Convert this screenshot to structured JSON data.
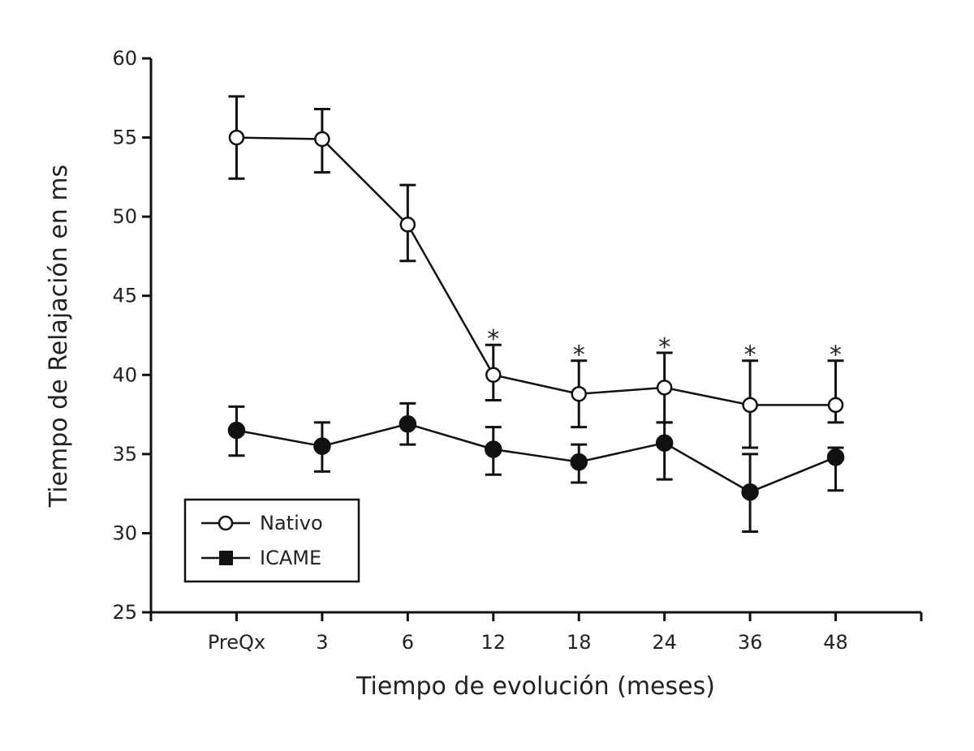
{
  "chart_data": {
    "type": "line",
    "title": "",
    "xlabel": "Tiempo de evolución (meses)",
    "ylabel": "Tiempo de Relajación en ms",
    "categories": [
      "PreQx",
      "3",
      "6",
      "12",
      "18",
      "24",
      "36",
      "48"
    ],
    "ylim": [
      25,
      60
    ],
    "yticks": [
      25,
      30,
      35,
      40,
      45,
      50,
      55,
      60
    ],
    "grid": false,
    "legend_position": "bottom-left",
    "series": [
      {
        "name": "Nativo",
        "marker": "open-circle",
        "values": [
          55.0,
          54.9,
          49.5,
          40.0,
          38.8,
          39.2,
          38.1,
          38.1
        ],
        "error_upper": [
          57.6,
          56.8,
          52.0,
          41.9,
          40.9,
          41.4,
          40.9,
          40.9
        ],
        "error_lower": [
          52.4,
          52.8,
          47.2,
          38.4,
          36.7,
          37.0,
          35.4,
          37.0
        ]
      },
      {
        "name": "ICAME",
        "marker": "filled-circle",
        "legend_marker": "filled-square",
        "values": [
          36.5,
          35.5,
          36.9,
          35.3,
          34.5,
          35.7,
          32.6,
          34.8
        ],
        "error_upper": [
          38.0,
          37.0,
          38.2,
          36.7,
          35.6,
          37.0,
          35.0,
          35.4
        ],
        "error_lower": [
          34.9,
          33.9,
          35.6,
          33.7,
          33.2,
          33.4,
          30.1,
          32.7
        ]
      }
    ],
    "annotations": [
      {
        "category": "12",
        "text": "*"
      },
      {
        "category": "18",
        "text": "*"
      },
      {
        "category": "24",
        "text": "*"
      },
      {
        "category": "36",
        "text": "*"
      },
      {
        "category": "48",
        "text": "*"
      }
    ]
  }
}
